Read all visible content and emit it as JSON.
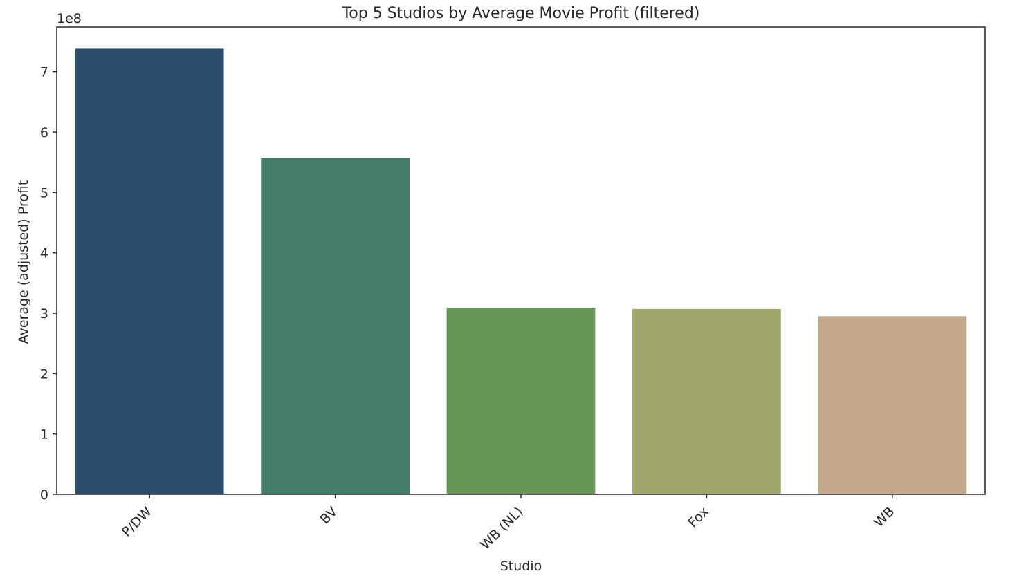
{
  "chart_data": {
    "type": "bar",
    "title": "Top 5 Studios by Average Movie Profit (filtered)",
    "xlabel": "Studio",
    "ylabel": "Average (adjusted) Profit",
    "offset_label": "1e8",
    "categories": [
      "P/DW",
      "BV",
      "WB (NL)",
      "Fox",
      "WB"
    ],
    "values": [
      7.38,
      5.57,
      3.09,
      3.07,
      2.95
    ],
    "colors": [
      "#2c4c6c",
      "#447c6c",
      "#669557",
      "#a1a66b",
      "#c4a98c"
    ],
    "ylim": [
      0,
      7.74
    ],
    "yticks": [
      0,
      1,
      2,
      3,
      4,
      5,
      6,
      7
    ],
    "ytick_labels": [
      "0",
      "1",
      "2",
      "3",
      "4",
      "5",
      "6",
      "7"
    ],
    "grid": false,
    "legend": "none"
  }
}
